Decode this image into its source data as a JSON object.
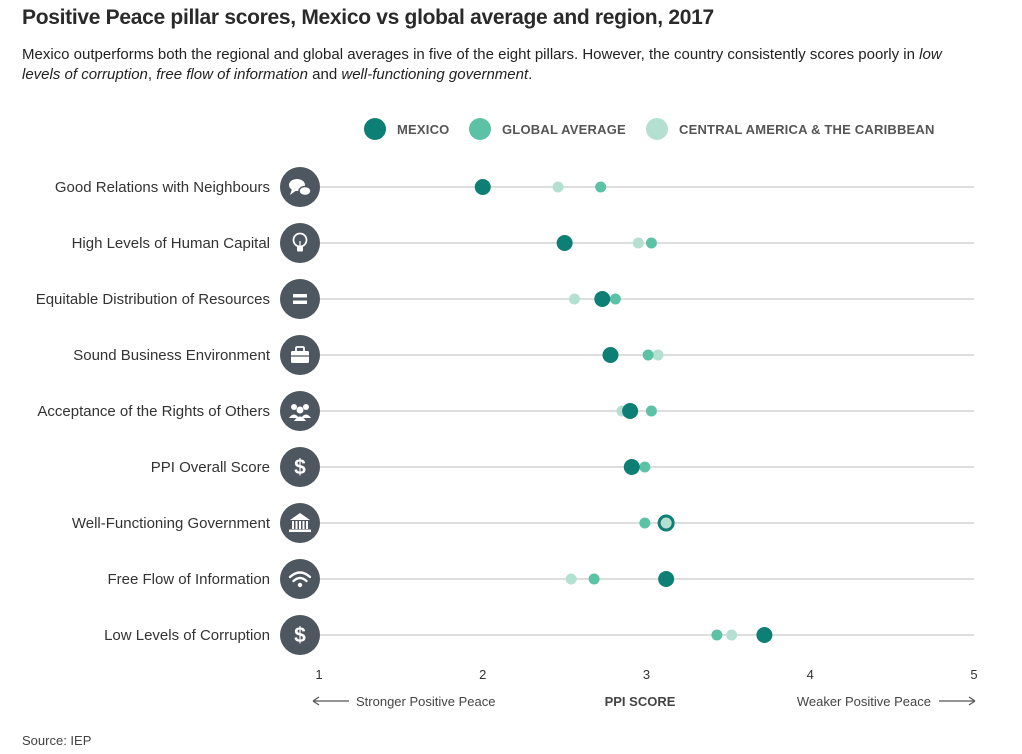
{
  "header": {
    "title": "Positive Peace pillar scores, Mexico vs global average and region, 2017",
    "subtitle_parts": [
      "Mexico outperforms both the regional and global averages in five of the eight pillars. However, the country consistently scores poorly in ",
      "low levels of corruption",
      ", ",
      "free flow of information",
      " and ",
      "well-functioning government",
      "."
    ]
  },
  "source": "Source: IEP",
  "colors": {
    "mexico": "#0e7f74",
    "global": "#5cc2a6",
    "region": "#b4e0d1",
    "icon_bg": "#4e5660",
    "gridline": "#bdbdbd"
  },
  "chart_data": {
    "type": "scatter",
    "title": "Positive Peace pillar scores, Mexico vs global average and region, 2017",
    "xlabel": "PPI SCORE",
    "xlim": [
      1,
      5
    ],
    "x_ticks": [
      1,
      2,
      3,
      4,
      5
    ],
    "axis_notes": {
      "left": "Stronger Positive Peace",
      "right": "Weaker Positive Peace"
    },
    "legend_position": "top",
    "categories": [
      "Good Relations with Neighbours",
      "High Levels of Human Capital",
      "Equitable Distribution of Resources",
      "Sound Business Environment",
      "Acceptance of the Rights of Others",
      "PPI Overall Score",
      "Well-Functioning Government",
      "Free Flow of Information",
      "Low Levels of Corruption"
    ],
    "category_icons": [
      "speech-bubbles-icon",
      "lightbulb-icon",
      "equals-icon",
      "briefcase-icon",
      "people-group-icon",
      "dollar-icon",
      "government-building-icon",
      "wifi-icon",
      "dollar-icon"
    ],
    "series": [
      {
        "name": "CENTRAL AMERICA & THE CARIBBEAN",
        "key": "region",
        "values": [
          2.46,
          2.95,
          2.56,
          3.07,
          2.85,
          2.91,
          3.12,
          2.54,
          3.52
        ]
      },
      {
        "name": "GLOBAL AVERAGE",
        "key": "global",
        "values": [
          2.72,
          3.03,
          2.81,
          3.01,
          3.03,
          2.99,
          2.99,
          2.68,
          3.43
        ]
      },
      {
        "name": "MEXICO",
        "key": "mexico",
        "values": [
          2.0,
          2.5,
          2.73,
          2.78,
          2.9,
          2.91,
          3.12,
          3.12,
          3.72
        ]
      }
    ],
    "legend_order": [
      "MEXICO",
      "GLOBAL AVERAGE",
      "CENTRAL AMERICA & THE CARIBBEAN"
    ]
  }
}
